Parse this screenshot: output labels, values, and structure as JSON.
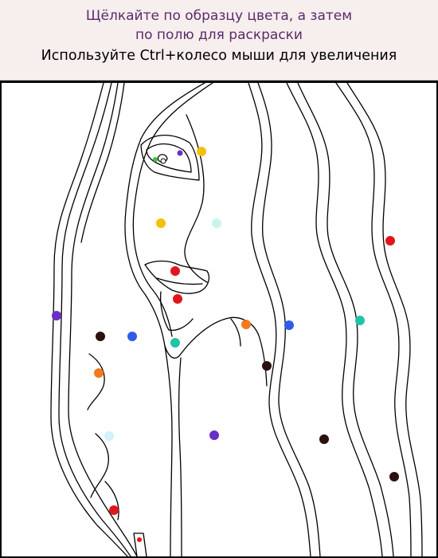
{
  "instructions": {
    "line1": "Щёлкайте по образцу цвета, а затем",
    "line2": "по полю для раскраски",
    "line3": "Используйте Ctrl+колесо мыши для увеличения"
  },
  "colors": {
    "purple": "#6a2fc7",
    "yellow": "#f2c10a",
    "green": "#3cc23c",
    "mint": "#c7f5ec",
    "red": "#e0161b",
    "orange": "#f27a1e",
    "blue": "#2f5ce8",
    "teal": "#1fc4a5",
    "brown": "#2b1010",
    "paleblue": "#d3f2fb"
  },
  "color_dots": [
    {
      "color": "purple"
    },
    {
      "color": "yellow"
    },
    {
      "color": "green"
    },
    {
      "color": "yellow"
    },
    {
      "color": "mint"
    },
    {
      "color": "red"
    },
    {
      "color": "red"
    },
    {
      "color": "red"
    },
    {
      "color": "purple"
    },
    {
      "color": "brown"
    },
    {
      "color": "blue"
    },
    {
      "color": "teal"
    },
    {
      "color": "orange"
    },
    {
      "color": "blue"
    },
    {
      "color": "teal"
    },
    {
      "color": "brown"
    },
    {
      "color": "orange"
    },
    {
      "color": "paleblue"
    },
    {
      "color": "purple"
    },
    {
      "color": "brown"
    },
    {
      "color": "brown"
    },
    {
      "color": "red"
    },
    {
      "color": "red"
    }
  ]
}
